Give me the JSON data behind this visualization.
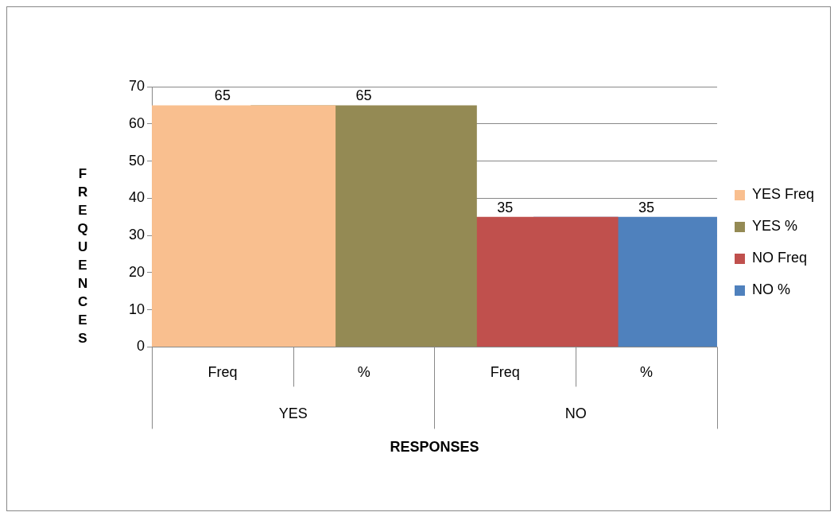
{
  "chart_data": {
    "type": "bar",
    "categories": [
      "Freq",
      "%",
      "Freq",
      "%"
    ],
    "series": [
      {
        "name": "YES Freq",
        "color": "#f9bf8f",
        "values": [
          65,
          null,
          null,
          null
        ]
      },
      {
        "name": "YES %",
        "color": "#948a54",
        "values": [
          null,
          65,
          null,
          null
        ]
      },
      {
        "name": "NO Freq",
        "color": "#c0504d",
        "values": [
          null,
          null,
          35,
          null
        ]
      },
      {
        "name": "NO %",
        "color": "#4f81bd",
        "values": [
          null,
          null,
          null,
          35
        ]
      }
    ],
    "annotations": [
      "YES",
      "NO"
    ],
    "xlabel": "RESPONSES",
    "ylabel": "FREQUENCES",
    "ylim": [
      0,
      70
    ],
    "yticks": [
      0,
      10,
      20,
      30,
      40,
      50,
      60,
      70
    ],
    "grid": "y",
    "legend": "right",
    "data_labels": true
  }
}
